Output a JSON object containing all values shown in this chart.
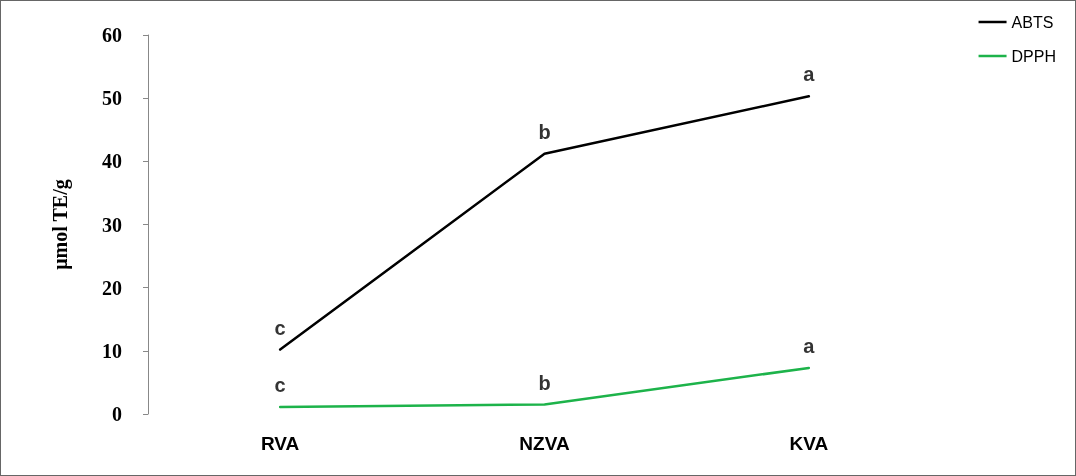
{
  "chart_data": {
    "type": "line",
    "ylabel": "μmol TE/g",
    "categories": [
      "RVA",
      "NZVA",
      "KVA"
    ],
    "series": [
      {
        "name": "ABTS",
        "color": "#000000",
        "values": [
          10.2,
          41.2,
          50.3
        ]
      },
      {
        "name": "DPPH",
        "color": "#1db34a",
        "values": [
          1.1,
          1.5,
          7.3
        ]
      }
    ],
    "ylim": [
      0,
      60
    ],
    "yticks": [
      0,
      10,
      20,
      30,
      40,
      50,
      60
    ],
    "grid": false,
    "legend": "top right",
    "marker": "none",
    "line_style": "solid",
    "annotations": [
      {
        "text": "c",
        "x": "RVA",
        "y": 10.2
      },
      {
        "text": "b",
        "x": "NZVA",
        "y": 41.2
      },
      {
        "text": "a",
        "x": "KVA",
        "y": 50.3
      },
      {
        "text": "c",
        "x": "RVA",
        "y": 1.1
      },
      {
        "text": "b",
        "x": "NZVA",
        "y": 1.5
      },
      {
        "text": "a",
        "x": "KVA",
        "y": 7.3
      }
    ]
  }
}
